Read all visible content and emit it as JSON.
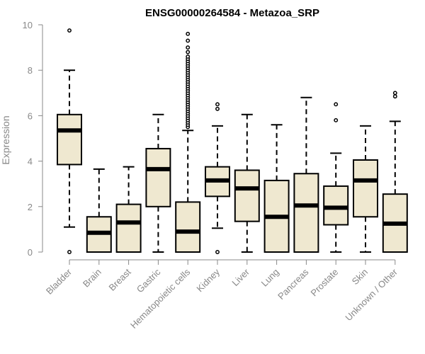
{
  "chart_data": {
    "type": "boxplot",
    "title": "ENSG00000264584 - Metazoa_SRP",
    "xlabel": "",
    "ylabel": "Expression",
    "ylim": [
      0,
      10
    ],
    "yticks": [
      0,
      2,
      4,
      6,
      8,
      10
    ],
    "categories": [
      "Bladder",
      "Brain",
      "Breast",
      "Gastric",
      "Hematopoietic cells",
      "Kidney",
      "Liver",
      "Lung",
      "Pancreas",
      "Prostate",
      "Skin",
      "Unknown / Other"
    ],
    "boxes": [
      {
        "category": "Bladder",
        "whisker_low": 1.1,
        "q1": 3.85,
        "median": 5.35,
        "q3": 6.05,
        "whisker_high": 8.0,
        "outliers": [
          9.75,
          0.0
        ]
      },
      {
        "category": "Brain",
        "whisker_low": 0.0,
        "q1": 0.0,
        "median": 0.85,
        "q3": 1.55,
        "whisker_high": 3.65,
        "outliers": []
      },
      {
        "category": "Breast",
        "whisker_low": 0.0,
        "q1": 0.0,
        "median": 1.3,
        "q3": 2.1,
        "whisker_high": 3.75,
        "outliers": []
      },
      {
        "category": "Gastric",
        "whisker_low": 0.0,
        "q1": 2.0,
        "median": 3.65,
        "q3": 4.55,
        "whisker_high": 6.05,
        "outliers": []
      },
      {
        "category": "Hematopoietic cells",
        "whisker_low": 0.0,
        "q1": 0.0,
        "median": 0.9,
        "q3": 2.2,
        "whisker_high": 5.35,
        "outliers": [
          5.5,
          5.6,
          5.7,
          5.8,
          5.9,
          6.0,
          6.1,
          6.2,
          6.3,
          6.4,
          6.5,
          6.6,
          6.7,
          6.8,
          6.9,
          7.0,
          7.1,
          7.2,
          7.3,
          7.4,
          7.5,
          7.6,
          7.7,
          7.8,
          7.9,
          8.0,
          8.1,
          8.2,
          8.3,
          8.4,
          8.5,
          8.6,
          8.8,
          9.0,
          9.3,
          9.6
        ]
      },
      {
        "category": "Kidney",
        "whisker_low": 1.05,
        "q1": 2.45,
        "median": 3.15,
        "q3": 3.75,
        "whisker_high": 5.55,
        "outliers": [
          6.3,
          6.5,
          0.0
        ]
      },
      {
        "category": "Liver",
        "whisker_low": 0.0,
        "q1": 1.35,
        "median": 2.8,
        "q3": 3.6,
        "whisker_high": 6.05,
        "outliers": []
      },
      {
        "category": "Lung",
        "whisker_low": 0.0,
        "q1": 0.0,
        "median": 1.55,
        "q3": 3.15,
        "whisker_high": 5.6,
        "outliers": []
      },
      {
        "category": "Pancreas",
        "whisker_low": 0.0,
        "q1": 0.0,
        "median": 2.05,
        "q3": 3.45,
        "whisker_high": 6.8,
        "outliers": []
      },
      {
        "category": "Prostate",
        "whisker_low": 0.0,
        "q1": 1.2,
        "median": 1.95,
        "q3": 2.9,
        "whisker_high": 4.35,
        "outliers": [
          5.8,
          6.5
        ]
      },
      {
        "category": "Skin",
        "whisker_low": 0.0,
        "q1": 1.55,
        "median": 3.15,
        "q3": 4.05,
        "whisker_high": 5.55,
        "outliers": []
      },
      {
        "category": "Unknown / Other",
        "whisker_low": 0.0,
        "q1": 0.0,
        "median": 1.25,
        "q3": 2.55,
        "whisker_high": 5.75,
        "outliers": [
          6.85,
          7.0
        ]
      }
    ],
    "grid": false,
    "legend": "none"
  },
  "colors": {
    "box_fill": "#efe8d0",
    "stroke": "#000000",
    "axis": "#888888",
    "text_gray": "#888888"
  }
}
